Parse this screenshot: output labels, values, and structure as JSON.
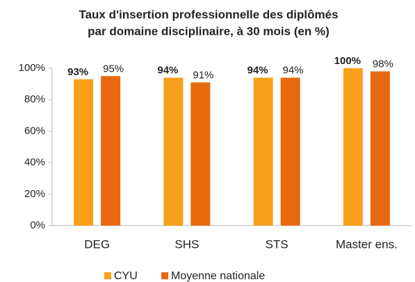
{
  "chart_data": {
    "type": "bar",
    "title": [
      "Taux d'insertion professionnelle  des diplômés",
      "par domaine disciplinaire, à 30 mois (en %)"
    ],
    "categories": [
      "DEG",
      "SHS",
      "STS",
      "Master ens."
    ],
    "series": [
      {
        "name": "CYU",
        "color": "#f8a01c",
        "values": [
          93,
          94,
          94,
          100
        ],
        "value_labels": [
          "93%",
          "94%",
          "94%",
          "100%"
        ]
      },
      {
        "name": "Moyenne nationale",
        "color": "#e8680e",
        "values": [
          95,
          91,
          94,
          98
        ],
        "value_labels": [
          "95%",
          "91%",
          "94%",
          "98%"
        ]
      }
    ],
    "ylim": [
      0,
      100
    ],
    "yticks": [
      {
        "value": 0,
        "label": "0%"
      },
      {
        "value": 20,
        "label": "20%"
      },
      {
        "value": 40,
        "label": "40%"
      },
      {
        "value": 60,
        "label": "60%"
      },
      {
        "value": 80,
        "label": "80%"
      },
      {
        "value": 100,
        "label": "100%"
      }
    ],
    "grid": false,
    "legend": "bottom"
  }
}
